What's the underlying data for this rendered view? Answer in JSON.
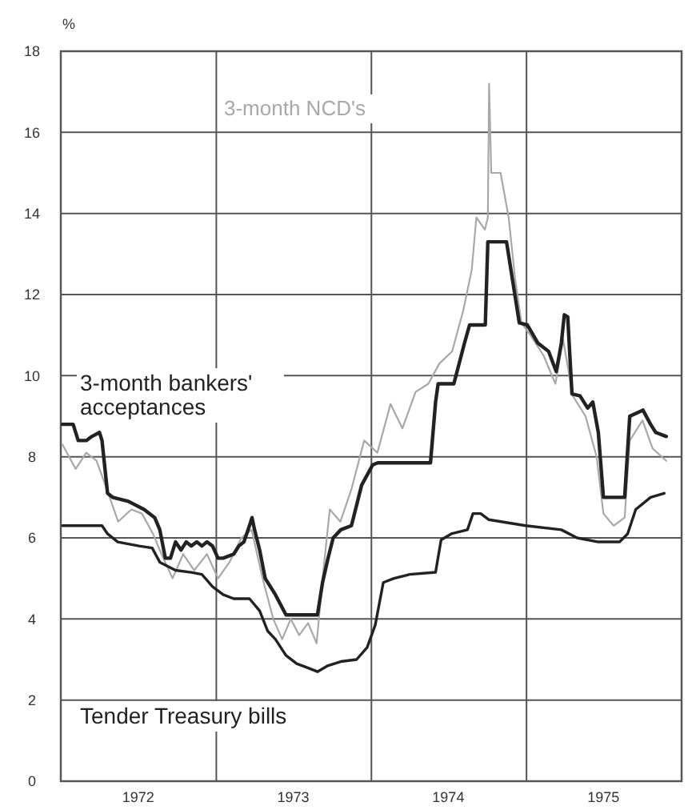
{
  "chart_data": {
    "type": "line",
    "ylabel": "%",
    "ylim": [
      0,
      18
    ],
    "yticks": [
      0,
      2,
      4,
      6,
      8,
      10,
      12,
      14,
      16,
      18
    ],
    "xlim": [
      "1972-01-01",
      "1976-01-01"
    ],
    "xticks": [
      {
        "value": "1972-01-01",
        "label": null
      },
      {
        "value": "1972-07-01",
        "label": "1972"
      },
      {
        "value": "1973-01-01",
        "label": null
      },
      {
        "value": "1973-07-01",
        "label": "1973"
      },
      {
        "value": "1974-01-01",
        "label": null
      },
      {
        "value": "1974-07-01",
        "label": "1974"
      },
      {
        "value": "1975-01-01",
        "label": null
      },
      {
        "value": "1975-07-01",
        "label": "1975"
      },
      {
        "value": "1976-01-01",
        "label": null
      }
    ],
    "grid": true,
    "marker": "none",
    "line_style": "solid",
    "series": [
      {
        "name": "3-month NCD's",
        "color": "#a8a8a8",
        "x": [
          "1972-01-05",
          "1972-02-05",
          "1972-03-01",
          "1972-03-25",
          "1972-04-15",
          "1972-05-15",
          "1972-06-15",
          "1972-07-10",
          "1972-08-05",
          "1972-08-25",
          "1972-09-20",
          "1972-10-15",
          "1972-11-10",
          "1972-12-10",
          "1973-01-05",
          "1973-02-01",
          "1973-03-01",
          "1973-03-25",
          "1973-04-20",
          "1973-05-15",
          "1973-06-05",
          "1973-06-25",
          "1973-07-15",
          "1973-08-05",
          "1973-08-25",
          "1973-09-10",
          "1973-09-25",
          "1973-10-20",
          "1973-11-15",
          "1973-12-15",
          "1974-01-15",
          "1974-02-15",
          "1974-03-15",
          "1974-04-15",
          "1974-05-15",
          "1974-06-10",
          "1974-07-10",
          "1974-08-05",
          "1974-08-25",
          "1974-09-05",
          "1974-09-25",
          "1974-10-02",
          "1974-10-05",
          "1974-10-10",
          "1974-11-01",
          "1974-11-20",
          "1974-12-05",
          "1974-12-20",
          "1975-01-10",
          "1975-02-10",
          "1975-03-10",
          "1975-03-28",
          "1975-04-20",
          "1975-05-20",
          "1975-06-15",
          "1975-07-01",
          "1975-07-25",
          "1975-08-20",
          "1975-09-01",
          "1975-10-01",
          "1975-10-25",
          "1975-11-26"
        ],
        "values": [
          8.3,
          7.7,
          8.1,
          7.9,
          7.3,
          6.4,
          6.7,
          6.6,
          6.1,
          5.6,
          5.0,
          5.6,
          5.2,
          5.6,
          5.0,
          5.4,
          6.0,
          6.2,
          5.0,
          4.0,
          3.5,
          4.0,
          3.6,
          3.9,
          3.4,
          5.2,
          6.7,
          6.4,
          7.2,
          8.4,
          8.1,
          9.3,
          8.7,
          9.6,
          9.8,
          10.3,
          10.6,
          11.6,
          12.6,
          13.9,
          13.6,
          13.9,
          17.2,
          15.0,
          15.0,
          13.9,
          12.4,
          11.3,
          11.0,
          10.5,
          9.8,
          10.9,
          9.5,
          9.0,
          8.0,
          6.6,
          6.3,
          6.5,
          8.4,
          8.9,
          8.2,
          7.9
        ]
      },
      {
        "name": "3-month bankers' acceptances",
        "color": "#222222",
        "x": [
          "1972-01-05",
          "1972-01-30",
          "1972-02-11",
          "1972-03-01",
          "1972-03-14",
          "1972-04-01",
          "1972-04-07",
          "1972-04-20",
          "1972-05-02",
          "1972-06-08",
          "1972-07-15",
          "1972-08-09",
          "1972-08-21",
          "1972-09-03",
          "1972-09-15",
          "1972-09-27",
          "1972-10-10",
          "1972-10-22",
          "1972-11-03",
          "1972-11-16",
          "1972-11-28",
          "1972-12-10",
          "1972-12-23",
          "1973-01-05",
          "1973-01-17",
          "1973-02-11",
          "1973-02-23",
          "1973-03-07",
          "1973-03-20",
          "1973-03-26",
          "1973-04-01",
          "1973-04-13",
          "1973-04-26",
          "1973-05-20",
          "1973-06-14",
          "1973-08-27",
          "1973-09-08",
          "1973-09-21",
          "1973-10-03",
          "1973-10-21",
          "1973-11-15",
          "1973-12-09",
          "1974-01-04",
          "1974-01-16",
          "1974-05-20",
          "1974-06-01",
          "1974-06-07",
          "1974-07-14",
          "1974-08-08",
          "1974-08-20",
          "1974-09-26",
          "1974-10-02",
          "1974-11-15",
          "1974-11-27",
          "1974-12-15",
          "1975-01-03",
          "1975-01-28",
          "1975-02-22",
          "1975-03-12",
          "1975-03-24",
          "1975-03-31",
          "1975-04-08",
          "1975-04-18",
          "1975-05-07",
          "1975-05-25",
          "1975-06-06",
          "1975-06-19",
          "1975-07-01",
          "1975-08-20",
          "1975-09-01",
          "1975-10-02",
          "1975-10-20",
          "1975-11-01",
          "1975-11-26"
        ],
        "values": [
          8.8,
          8.8,
          8.4,
          8.4,
          8.5,
          8.6,
          8.4,
          7.1,
          7.0,
          6.9,
          6.7,
          6.5,
          6.2,
          5.5,
          5.5,
          5.9,
          5.7,
          5.9,
          5.8,
          5.9,
          5.8,
          5.9,
          5.8,
          5.5,
          5.5,
          5.6,
          5.8,
          5.9,
          6.3,
          6.5,
          6.2,
          5.7,
          5.0,
          4.6,
          4.1,
          4.1,
          4.9,
          5.5,
          6.0,
          6.2,
          6.3,
          7.3,
          7.8,
          7.85,
          7.85,
          9.35,
          9.8,
          9.8,
          10.8,
          11.25,
          11.25,
          13.3,
          13.3,
          12.5,
          11.3,
          11.25,
          10.8,
          10.6,
          10.1,
          10.8,
          11.5,
          11.45,
          9.55,
          9.5,
          9.2,
          9.35,
          8.6,
          7.0,
          7.0,
          9.0,
          9.15,
          8.8,
          8.6,
          8.5
        ]
      },
      {
        "name": "Tender Treasury bills",
        "color": "#222222",
        "x": [
          "1972-01-05",
          "1972-04-07",
          "1972-04-20",
          "1972-05-14",
          "1972-06-08",
          "1972-07-03",
          "1972-08-03",
          "1972-08-21",
          "1972-09-27",
          "1972-11-03",
          "1972-11-28",
          "1972-12-23",
          "1973-01-17",
          "1973-02-11",
          "1973-03-20",
          "1973-04-13",
          "1973-05-02",
          "1973-05-20",
          "1973-06-14",
          "1973-07-09",
          "1973-08-03",
          "1973-08-27",
          "1973-09-21",
          "1973-10-21",
          "1973-11-27",
          "1973-12-22",
          "1974-01-10",
          "1974-01-29",
          "1974-02-23",
          "1974-04-01",
          "1974-06-01",
          "1974-06-14",
          "1974-07-08",
          "1974-08-15",
          "1974-08-28",
          "1974-09-15",
          "1974-10-04",
          "1974-12-30",
          "1975-03-24",
          "1975-04-30",
          "1975-06-19",
          "1975-08-08",
          "1975-08-27",
          "1975-09-15",
          "1975-10-20",
          "1975-11-21"
        ],
        "values": [
          6.3,
          6.3,
          6.1,
          5.9,
          5.85,
          5.8,
          5.75,
          5.4,
          5.2,
          5.15,
          5.1,
          4.8,
          4.6,
          4.5,
          4.5,
          4.2,
          3.7,
          3.5,
          3.1,
          2.9,
          2.8,
          2.7,
          2.85,
          2.95,
          3.0,
          3.3,
          3.85,
          4.9,
          5.0,
          5.1,
          5.15,
          5.95,
          6.1,
          6.2,
          6.6,
          6.6,
          6.45,
          6.3,
          6.2,
          6.0,
          5.9,
          5.9,
          6.1,
          6.7,
          7.0,
          7.1
        ]
      }
    ]
  }
}
